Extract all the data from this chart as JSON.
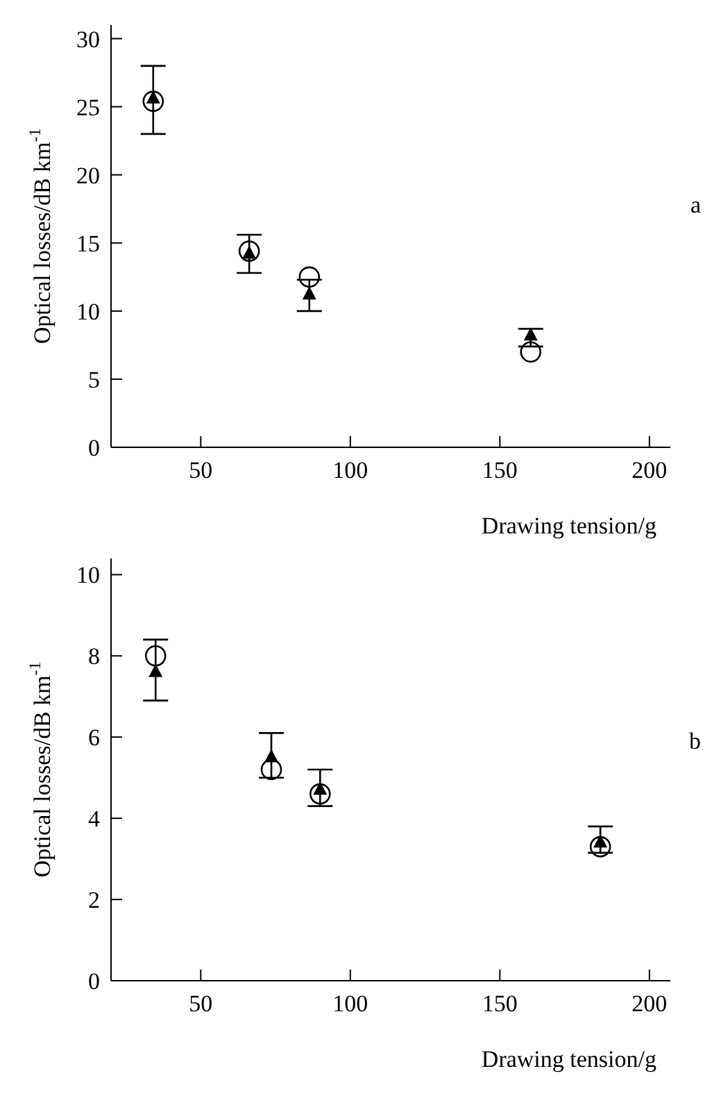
{
  "chart_data": [
    {
      "type": "scatter",
      "xlabel": "Drawing tension/g",
      "ylabel": "Optical losses/dB km$^{-1}$",
      "annotations": [
        "a"
      ],
      "xlim": [
        20,
        207
      ],
      "xticks": [
        50,
        100,
        150,
        200
      ],
      "ylim": [
        0,
        31
      ],
      "yticks": [
        0,
        5,
        10,
        15,
        20,
        25,
        30
      ],
      "grid": false,
      "legend": false,
      "series": [
        {
          "color": "#000000",
          "marker": "circle",
          "x": [
            34.1,
            66.2,
            86.3,
            160.3
          ],
          "values": [
            25.4,
            14.4,
            12.5,
            7.0
          ]
        },
        {
          "color": "#000000",
          "marker": "triangle",
          "x": [
            34.1,
            66.2,
            86.3,
            160.3
          ],
          "values": [
            25.6,
            14.2,
            11.2,
            8.2
          ],
          "errors": [
            [
              23.0,
              28.0
            ],
            [
              12.8,
              15.6
            ],
            [
              10.0,
              12.3
            ],
            [
              7.4,
              8.7
            ]
          ]
        }
      ]
    },
    {
      "type": "scatter",
      "xlabel": "Drawing tension/g",
      "ylabel": "Optical losses/dB km$^{-1}$",
      "annotations": [
        "b"
      ],
      "xlim": [
        20,
        207
      ],
      "xticks": [
        50,
        100,
        150,
        200
      ],
      "ylim": [
        0,
        10.4
      ],
      "yticks": [
        0,
        2,
        4,
        6,
        8,
        10
      ],
      "grid": false,
      "legend": false,
      "series": [
        {
          "color": "#000000",
          "marker": "circle",
          "x": [
            34.9,
            73.6,
            89.9,
            183.6
          ],
          "values": [
            8.0,
            5.2,
            4.6,
            3.3
          ]
        },
        {
          "color": "#000000",
          "marker": "triangle",
          "x": [
            34.9,
            73.6,
            89.9,
            183.6
          ],
          "values": [
            7.6,
            5.5,
            4.7,
            3.4
          ],
          "errors": [
            [
              6.9,
              8.4
            ],
            [
              5.0,
              6.1
            ],
            [
              4.3,
              5.2
            ],
            [
              3.15,
              3.8
            ]
          ]
        }
      ]
    }
  ]
}
